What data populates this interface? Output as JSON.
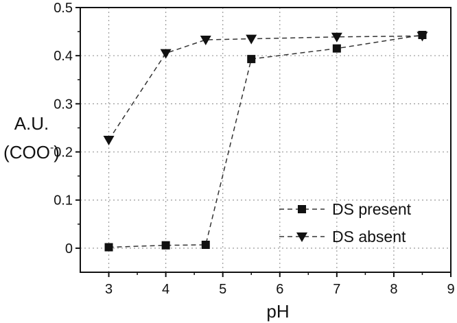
{
  "chart_data": {
    "type": "line",
    "xlabel": "pH",
    "ylabel_line1": "A.U.",
    "ylabel_line2_main": "(COO",
    "ylabel_line2_sup": "-",
    "ylabel_line2_end": ")",
    "xlim": [
      2.5,
      9
    ],
    "ylim": [
      -0.05,
      0.5
    ],
    "xticks": [
      3,
      4,
      5,
      6,
      7,
      8,
      9
    ],
    "yticks": [
      0,
      0.1,
      0.2,
      0.3,
      0.4,
      0.5
    ],
    "xtick_labels": [
      "3",
      "4",
      "5",
      "6",
      "7",
      "8",
      "9"
    ],
    "ytick_labels": [
      "0",
      "0.1",
      "0.2",
      "0.3",
      "0.4",
      "0.5"
    ],
    "grid": true,
    "legend_position": "bottom-right",
    "series": [
      {
        "name": "DS present",
        "marker": "square",
        "x": [
          3,
          4,
          4.7,
          5.5,
          7,
          8.5
        ],
        "y": [
          0.002,
          0.006,
          0.007,
          0.393,
          0.415,
          0.443
        ]
      },
      {
        "name": "DS absent",
        "marker": "triangle-down",
        "x": [
          3,
          4,
          4.7,
          5.5,
          7,
          8.5
        ],
        "y": [
          0.225,
          0.405,
          0.433,
          0.435,
          0.439,
          0.441
        ]
      }
    ]
  }
}
